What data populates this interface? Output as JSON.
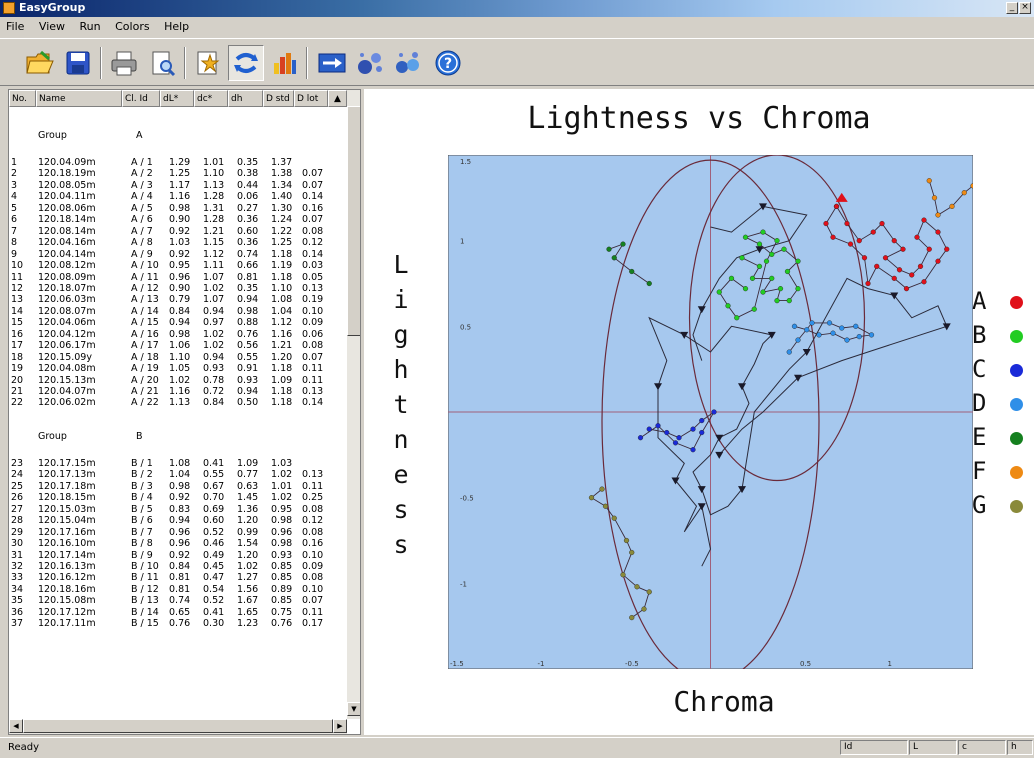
{
  "window": {
    "title": "EasyGroup",
    "minimize": "_",
    "close": "×"
  },
  "menu": [
    "File",
    "View",
    "Run",
    "Colors",
    "Help"
  ],
  "toolbar": [
    {
      "name": "open-icon",
      "color": "#f0b030"
    },
    {
      "name": "save-icon",
      "color": "#2f55c8"
    },
    {
      "name": "print-icon",
      "color": "#808080"
    },
    {
      "name": "print-preview-icon",
      "color": "#5a8ad8"
    },
    {
      "name": "star-document-icon",
      "color": "#e0a020"
    },
    {
      "name": "refresh-icon",
      "color": "#2060d0"
    },
    {
      "name": "bar-chart-icon",
      "color": "#d84020"
    },
    {
      "name": "arrow-right-icon",
      "color": "#2a60c8"
    },
    {
      "name": "scatter-icon",
      "color": "#3050b0"
    },
    {
      "name": "scatter-groups-icon",
      "color": "#3060c0"
    },
    {
      "name": "help-icon",
      "color": "#2a70d8"
    }
  ],
  "table": {
    "columns": [
      "No.",
      "Name",
      "Cl. Id",
      "dL*",
      "dc*",
      "dh",
      "D std",
      "D lot"
    ],
    "groups": [
      {
        "label": "Group",
        "id": "A",
        "rows": [
          [
            "1",
            "120.04.09m",
            "A / 1",
            "1.29",
            "1.01",
            "0.35",
            "1.37",
            ""
          ],
          [
            "2",
            "120.18.19m",
            "A / 2",
            "1.25",
            "1.10",
            "0.38",
            "1.38",
            "0.07"
          ],
          [
            "3",
            "120.08.05m",
            "A / 3",
            "1.17",
            "1.13",
            "0.44",
            "1.34",
            "0.07"
          ],
          [
            "4",
            "120.04.11m",
            "A / 4",
            "1.16",
            "1.28",
            "0.06",
            "1.40",
            "0.14"
          ],
          [
            "5",
            "120.08.06m",
            "A / 5",
            "0.98",
            "1.31",
            "0.27",
            "1.30",
            "0.16"
          ],
          [
            "6",
            "120.18.14m",
            "A / 6",
            "0.90",
            "1.28",
            "0.36",
            "1.24",
            "0.07"
          ],
          [
            "7",
            "120.08.14m",
            "A / 7",
            "0.92",
            "1.21",
            "0.60",
            "1.22",
            "0.08"
          ],
          [
            "8",
            "120.04.16m",
            "A / 8",
            "1.03",
            "1.15",
            "0.36",
            "1.25",
            "0.12"
          ],
          [
            "9",
            "120.04.14m",
            "A / 9",
            "0.92",
            "1.12",
            "0.74",
            "1.18",
            "0.14"
          ],
          [
            "10",
            "120.08.12m",
            "A / 10",
            "0.95",
            "1.11",
            "0.66",
            "1.19",
            "0.03"
          ],
          [
            "11",
            "120.08.09m",
            "A / 11",
            "0.96",
            "1.07",
            "0.81",
            "1.18",
            "0.05"
          ],
          [
            "12",
            "120.18.07m",
            "A / 12",
            "0.90",
            "1.02",
            "0.35",
            "1.10",
            "0.13"
          ],
          [
            "13",
            "120.06.03m",
            "A / 13",
            "0.79",
            "1.07",
            "0.94",
            "1.08",
            "0.19"
          ],
          [
            "14",
            "120.08.07m",
            "A / 14",
            "0.84",
            "0.94",
            "0.98",
            "1.04",
            "0.10"
          ],
          [
            "15",
            "120.04.06m",
            "A / 15",
            "0.94",
            "0.97",
            "0.88",
            "1.12",
            "0.09"
          ],
          [
            "16",
            "120.04.12m",
            "A / 16",
            "0.98",
            "1.02",
            "0.76",
            "1.16",
            "0.06"
          ],
          [
            "17",
            "120.06.17m",
            "A / 17",
            "1.06",
            "1.02",
            "0.56",
            "1.21",
            "0.08"
          ],
          [
            "18",
            "120.15.09y",
            "A / 18",
            "1.10",
            "0.94",
            "0.55",
            "1.20",
            "0.07"
          ],
          [
            "19",
            "120.04.08m",
            "A / 19",
            "1.05",
            "0.93",
            "0.91",
            "1.18",
            "0.11"
          ],
          [
            "20",
            "120.15.13m",
            "A / 20",
            "1.02",
            "0.78",
            "0.93",
            "1.09",
            "0.11"
          ],
          [
            "21",
            "120.04.07m",
            "A / 21",
            "1.16",
            "0.72",
            "0.94",
            "1.18",
            "0.13"
          ],
          [
            "22",
            "120.06.02m",
            "A / 22",
            "1.13",
            "0.84",
            "0.50",
            "1.18",
            "0.14"
          ]
        ]
      },
      {
        "label": "Group",
        "id": "B",
        "rows": [
          [
            "23",
            "120.17.15m",
            "B / 1",
            "1.08",
            "0.41",
            "1.09",
            "1.03",
            ""
          ],
          [
            "24",
            "120.17.13m",
            "B / 2",
            "1.04",
            "0.55",
            "0.77",
            "1.02",
            "0.13"
          ],
          [
            "25",
            "120.17.18m",
            "B / 3",
            "0.98",
            "0.67",
            "0.63",
            "1.01",
            "0.11"
          ],
          [
            "26",
            "120.18.15m",
            "B / 4",
            "0.92",
            "0.70",
            "1.45",
            "1.02",
            "0.25"
          ],
          [
            "27",
            "120.15.03m",
            "B / 5",
            "0.83",
            "0.69",
            "1.36",
            "0.95",
            "0.08"
          ],
          [
            "28",
            "120.15.04m",
            "B / 6",
            "0.94",
            "0.60",
            "1.20",
            "0.98",
            "0.12"
          ],
          [
            "29",
            "120.17.16m",
            "B / 7",
            "0.96",
            "0.52",
            "0.99",
            "0.96",
            "0.08"
          ],
          [
            "30",
            "120.16.10m",
            "B / 8",
            "0.96",
            "0.46",
            "1.54",
            "0.98",
            "0.16"
          ],
          [
            "31",
            "120.17.14m",
            "B / 9",
            "0.92",
            "0.49",
            "1.20",
            "0.93",
            "0.10"
          ],
          [
            "32",
            "120.16.13m",
            "B / 10",
            "0.84",
            "0.45",
            "1.02",
            "0.85",
            "0.09"
          ],
          [
            "33",
            "120.16.12m",
            "B / 11",
            "0.81",
            "0.47",
            "1.27",
            "0.85",
            "0.08"
          ],
          [
            "34",
            "120.18.16m",
            "B / 12",
            "0.81",
            "0.54",
            "1.56",
            "0.89",
            "0.10"
          ],
          [
            "35",
            "120.15.08m",
            "B / 13",
            "0.74",
            "0.52",
            "1.67",
            "0.85",
            "0.07"
          ],
          [
            "36",
            "120.17.12m",
            "B / 14",
            "0.65",
            "0.41",
            "1.65",
            "0.75",
            "0.11"
          ],
          [
            "37",
            "120.17.11m",
            "B / 15",
            "0.76",
            "0.30",
            "1.23",
            "0.76",
            "0.17"
          ]
        ]
      }
    ]
  },
  "chart_data": {
    "type": "scatter",
    "title": "Lightness vs Chroma",
    "xlabel": "Chroma",
    "ylabel": "Lightness",
    "xlim": [
      -1.5,
      1.5
    ],
    "ylim": [
      -1.5,
      1.5
    ],
    "x_ticks": [
      "-1.5",
      "-1",
      "-0.5",
      "0.5",
      "1"
    ],
    "y_ticks": [
      "1.5",
      "1",
      "0.5",
      "-0.5",
      "-1"
    ],
    "background": "#a6c8ee",
    "ellipses": [
      {
        "cx": 0.0,
        "cy": -0.05,
        "rx": 0.62,
        "ry": 1.52
      },
      {
        "cx": 0.38,
        "cy": 0.55,
        "rx": 0.5,
        "ry": 0.95
      }
    ],
    "series": [
      {
        "name": "A",
        "color": "#e0101a",
        "points": [
          [
            0.72,
            1.2
          ],
          [
            0.78,
            1.1
          ],
          [
            0.85,
            1.0
          ],
          [
            0.93,
            1.05
          ],
          [
            0.98,
            1.1
          ],
          [
            1.05,
            1.0
          ],
          [
            1.1,
            0.95
          ],
          [
            1.0,
            0.9
          ],
          [
            1.08,
            0.83
          ],
          [
            1.15,
            0.8
          ],
          [
            1.2,
            0.85
          ],
          [
            1.25,
            0.95
          ],
          [
            1.18,
            1.02
          ],
          [
            1.22,
            1.12
          ],
          [
            1.3,
            1.05
          ],
          [
            1.35,
            0.95
          ],
          [
            1.3,
            0.88
          ],
          [
            1.22,
            0.76
          ],
          [
            1.12,
            0.72
          ],
          [
            1.05,
            0.78
          ],
          [
            0.95,
            0.85
          ],
          [
            0.9,
            0.75
          ],
          [
            0.88,
            0.9
          ],
          [
            0.8,
            0.98
          ],
          [
            0.7,
            1.02
          ],
          [
            0.66,
            1.1
          ],
          [
            0.72,
            1.2
          ]
        ]
      },
      {
        "name": "B",
        "color": "#22cc22",
        "points": [
          [
            0.18,
            0.9
          ],
          [
            0.28,
            0.85
          ],
          [
            0.24,
            0.78
          ],
          [
            0.35,
            0.78
          ],
          [
            0.3,
            0.7
          ],
          [
            0.4,
            0.72
          ],
          [
            0.38,
            0.65
          ],
          [
            0.45,
            0.65
          ],
          [
            0.5,
            0.72
          ],
          [
            0.44,
            0.82
          ],
          [
            0.5,
            0.88
          ],
          [
            0.42,
            0.95
          ],
          [
            0.35,
            0.92
          ],
          [
            0.28,
            0.98
          ],
          [
            0.2,
            1.02
          ],
          [
            0.3,
            1.05
          ],
          [
            0.38,
            1.0
          ],
          [
            0.32,
            0.88
          ],
          [
            0.25,
            0.6
          ],
          [
            0.15,
            0.55
          ],
          [
            0.1,
            0.62
          ],
          [
            0.05,
            0.7
          ],
          [
            0.12,
            0.78
          ],
          [
            0.2,
            0.72
          ]
        ]
      },
      {
        "name": "C",
        "color": "#1a2ad8",
        "points": [
          [
            -0.35,
            -0.1
          ],
          [
            -0.25,
            -0.12
          ],
          [
            -0.18,
            -0.15
          ],
          [
            -0.1,
            -0.1
          ],
          [
            -0.05,
            -0.05
          ],
          [
            0.02,
            0.0
          ],
          [
            -0.05,
            -0.12
          ],
          [
            -0.1,
            -0.22
          ],
          [
            -0.2,
            -0.18
          ],
          [
            -0.3,
            -0.08
          ],
          [
            -0.4,
            -0.15
          ]
        ]
      },
      {
        "name": "D",
        "color": "#2f8fe8",
        "points": [
          [
            0.48,
            0.5
          ],
          [
            0.55,
            0.48
          ],
          [
            0.62,
            0.45
          ],
          [
            0.7,
            0.46
          ],
          [
            0.78,
            0.42
          ],
          [
            0.85,
            0.44
          ],
          [
            0.92,
            0.45
          ],
          [
            0.83,
            0.5
          ],
          [
            0.75,
            0.49
          ],
          [
            0.68,
            0.52
          ],
          [
            0.58,
            0.52
          ],
          [
            0.5,
            0.42
          ],
          [
            0.45,
            0.35
          ]
        ]
      },
      {
        "name": "E",
        "color": "#15801f",
        "points": [
          [
            -0.35,
            0.75
          ],
          [
            -0.45,
            0.82
          ],
          [
            -0.55,
            0.9
          ],
          [
            -0.5,
            0.98
          ],
          [
            -0.58,
            0.95
          ]
        ]
      },
      {
        "name": "F",
        "color": "#ee8a14",
        "points": [
          [
            1.25,
            1.35
          ],
          [
            1.28,
            1.25
          ],
          [
            1.3,
            1.15
          ],
          [
            1.38,
            1.2
          ],
          [
            1.45,
            1.28
          ],
          [
            1.5,
            1.32
          ]
        ]
      },
      {
        "name": "G",
        "color": "#8a8a3a",
        "points": [
          [
            -0.62,
            -0.45
          ],
          [
            -0.68,
            -0.5
          ],
          [
            -0.6,
            -0.55
          ],
          [
            -0.55,
            -0.62
          ],
          [
            -0.48,
            -0.75
          ],
          [
            -0.45,
            -0.82
          ],
          [
            -0.5,
            -0.95
          ],
          [
            -0.42,
            -1.02
          ],
          [
            -0.35,
            -1.05
          ],
          [
            -0.38,
            -1.15
          ],
          [
            -0.45,
            -1.2
          ]
        ]
      }
    ],
    "trajectory": [
      [
        -0.05,
        -0.9
      ],
      [
        0.0,
        -0.8
      ],
      [
        -0.05,
        -0.55
      ],
      [
        -0.15,
        -0.7
      ],
      [
        -0.08,
        -0.55
      ],
      [
        -0.2,
        -0.4
      ],
      [
        -0.15,
        -0.3
      ],
      [
        -0.3,
        -0.15
      ],
      [
        -0.3,
        0.15
      ],
      [
        -0.25,
        0.3
      ],
      [
        -0.35,
        0.55
      ],
      [
        -0.15,
        0.45
      ],
      [
        0.0,
        0.35
      ],
      [
        0.12,
        0.5
      ],
      [
        0.35,
        0.45
      ],
      [
        0.3,
        0.4
      ],
      [
        0.25,
        0.28
      ],
      [
        0.18,
        0.15
      ],
      [
        0.22,
        0.05
      ],
      [
        0.15,
        -0.1
      ],
      [
        0.05,
        -0.15
      ],
      [
        0.0,
        -0.25
      ],
      [
        -0.1,
        -0.35
      ],
      [
        -0.05,
        -0.45
      ],
      [
        0.0,
        -0.6
      ],
      [
        0.1,
        -0.55
      ],
      [
        0.18,
        -0.45
      ],
      [
        0.25,
        0.0
      ],
      [
        0.45,
        0.25
      ],
      [
        0.55,
        0.35
      ],
      [
        0.78,
        0.78
      ],
      [
        0.9,
        0.72
      ],
      [
        1.05,
        0.68
      ],
      [
        1.15,
        0.55
      ],
      [
        1.3,
        0.62
      ],
      [
        1.35,
        0.5
      ],
      [
        0.9,
        0.35
      ],
      [
        0.75,
        0.3
      ],
      [
        0.5,
        0.2
      ],
      [
        0.3,
        0.0
      ],
      [
        0.18,
        -0.1
      ],
      [
        0.05,
        -0.25
      ]
    ],
    "trajectory_b": [
      [
        0.0,
        1.08
      ],
      [
        0.12,
        1.05
      ],
      [
        0.3,
        1.2
      ],
      [
        0.55,
        1.15
      ],
      [
        0.45,
        1.0
      ],
      [
        0.28,
        0.95
      ],
      [
        0.15,
        0.9
      ],
      [
        0.05,
        0.78
      ],
      [
        -0.05,
        0.6
      ],
      [
        -0.1,
        0.45
      ],
      [
        -0.05,
        0.3
      ]
    ]
  },
  "status": {
    "ready": "Ready",
    "panels": [
      "Id",
      "L",
      "c",
      "h"
    ]
  }
}
